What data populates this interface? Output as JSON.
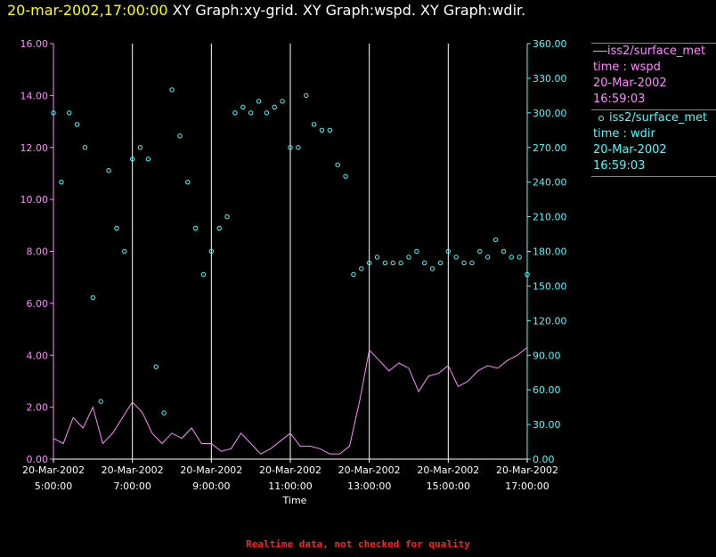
{
  "header": {
    "timestamp": "20-mar-2002,17:00:00",
    "titles": "XY Graph:xy-grid.  XY Graph:wspd.  XY Graph:wdir."
  },
  "legend": {
    "wspd": {
      "name": "iss2/surface_met",
      "field": "time : wspd",
      "date": "20-Mar-2002",
      "time": "16:59:03"
    },
    "wdir": {
      "name": "iss2/surface_met",
      "field": "time : wdir",
      "date": "20-Mar-2002",
      "time": "16:59:03"
    }
  },
  "footer": "Realtime data, not checked for quality",
  "colors": {
    "wspd": "#ff88ff",
    "wdir": "#44ffff",
    "left_axis": "#ff88ff",
    "right_axis": "#44ffff",
    "grid": "#ffffff",
    "background": "#000000"
  },
  "chart_data": {
    "type": "line",
    "xlabel": "Time",
    "x_ticks": [
      {
        "hour": 5,
        "date": "20-Mar-2002",
        "time": "5:00:00"
      },
      {
        "hour": 7,
        "date": "20-Mar-2002",
        "time": "7:00:00"
      },
      {
        "hour": 9,
        "date": "20-Mar-2002",
        "time": "9:00:00"
      },
      {
        "hour": 11,
        "date": "20-Mar-2002",
        "time": "11:00:00"
      },
      {
        "hour": 13,
        "date": "20-Mar-2002",
        "time": "13:00:00"
      },
      {
        "hour": 15,
        "date": "20-Mar-2002",
        "time": "15:00:00"
      },
      {
        "hour": 17,
        "date": "20-Mar-2002",
        "time": "17:00:00"
      }
    ],
    "xlim_hours": [
      5,
      17
    ],
    "grid": "vertical lines at each time tick",
    "left_axis": {
      "ylim": [
        0,
        16
      ],
      "ticks": [
        "0.00",
        "2.00",
        "4.00",
        "6.00",
        "8.00",
        "10.00",
        "12.00",
        "14.00",
        "16.00"
      ]
    },
    "right_axis": {
      "ylim": [
        0,
        360
      ],
      "ticks": [
        "0.00",
        "30.00",
        "60.00",
        "90.00",
        "120.00",
        "150.00",
        "180.00",
        "210.00",
        "240.00",
        "270.00",
        "300.00",
        "330.00",
        "360.00"
      ]
    },
    "series": [
      {
        "name": "iss2/surface_met time : wspd",
        "axis": "left",
        "style": "line",
        "x_hours": [
          5.0,
          5.25,
          5.5,
          5.75,
          6.0,
          6.25,
          6.5,
          6.75,
          7.0,
          7.25,
          7.5,
          7.75,
          8.0,
          8.25,
          8.5,
          8.75,
          9.0,
          9.25,
          9.5,
          9.75,
          10.0,
          10.25,
          10.5,
          10.75,
          11.0,
          11.25,
          11.5,
          11.75,
          12.0,
          12.25,
          12.5,
          12.75,
          13.0,
          13.25,
          13.5,
          13.75,
          14.0,
          14.25,
          14.5,
          14.75,
          15.0,
          15.25,
          15.5,
          15.75,
          16.0,
          16.25,
          16.5,
          16.75,
          17.0
        ],
        "values": [
          0.8,
          0.6,
          1.6,
          1.2,
          2.0,
          0.6,
          1.0,
          1.6,
          2.2,
          1.8,
          1.0,
          0.6,
          1.0,
          0.8,
          1.2,
          0.6,
          0.6,
          0.3,
          0.4,
          1.0,
          0.6,
          0.2,
          0.4,
          0.7,
          1.0,
          0.5,
          0.5,
          0.4,
          0.2,
          0.2,
          0.5,
          2.2,
          4.2,
          3.8,
          3.4,
          3.7,
          3.5,
          2.6,
          3.2,
          3.3,
          3.6,
          2.8,
          3.0,
          3.4,
          3.6,
          3.5,
          3.8,
          4.0,
          4.3
        ]
      },
      {
        "name": "iss2/surface_met time : wdir",
        "axis": "right",
        "style": "circles",
        "x_hours": [
          5.0,
          5.2,
          5.4,
          5.6,
          5.8,
          6.0,
          6.2,
          6.4,
          6.6,
          6.8,
          7.0,
          7.2,
          7.4,
          7.6,
          7.8,
          8.0,
          8.2,
          8.4,
          8.6,
          8.8,
          9.0,
          9.2,
          9.4,
          9.6,
          9.8,
          10.0,
          10.2,
          10.4,
          10.6,
          10.8,
          11.0,
          11.2,
          11.4,
          11.6,
          11.8,
          12.0,
          12.2,
          12.4,
          12.6,
          12.8,
          13.0,
          13.2,
          13.4,
          13.6,
          13.8,
          14.0,
          14.2,
          14.4,
          14.6,
          14.8,
          15.0,
          15.2,
          15.4,
          15.6,
          15.8,
          16.0,
          16.2,
          16.4,
          16.6,
          16.8,
          17.0
        ],
        "values": [
          300,
          240,
          300,
          290,
          270,
          140,
          50,
          250,
          200,
          180,
          260,
          270,
          260,
          80,
          40,
          320,
          280,
          240,
          200,
          160,
          180,
          200,
          210,
          300,
          305,
          300,
          310,
          300,
          305,
          310,
          270,
          270,
          315,
          290,
          285,
          285,
          255,
          245,
          160,
          165,
          170,
          175,
          170,
          170,
          170,
          175,
          180,
          170,
          165,
          170,
          180,
          175,
          170,
          170,
          180,
          175,
          190,
          180,
          175,
          175,
          160
        ]
      }
    ]
  }
}
